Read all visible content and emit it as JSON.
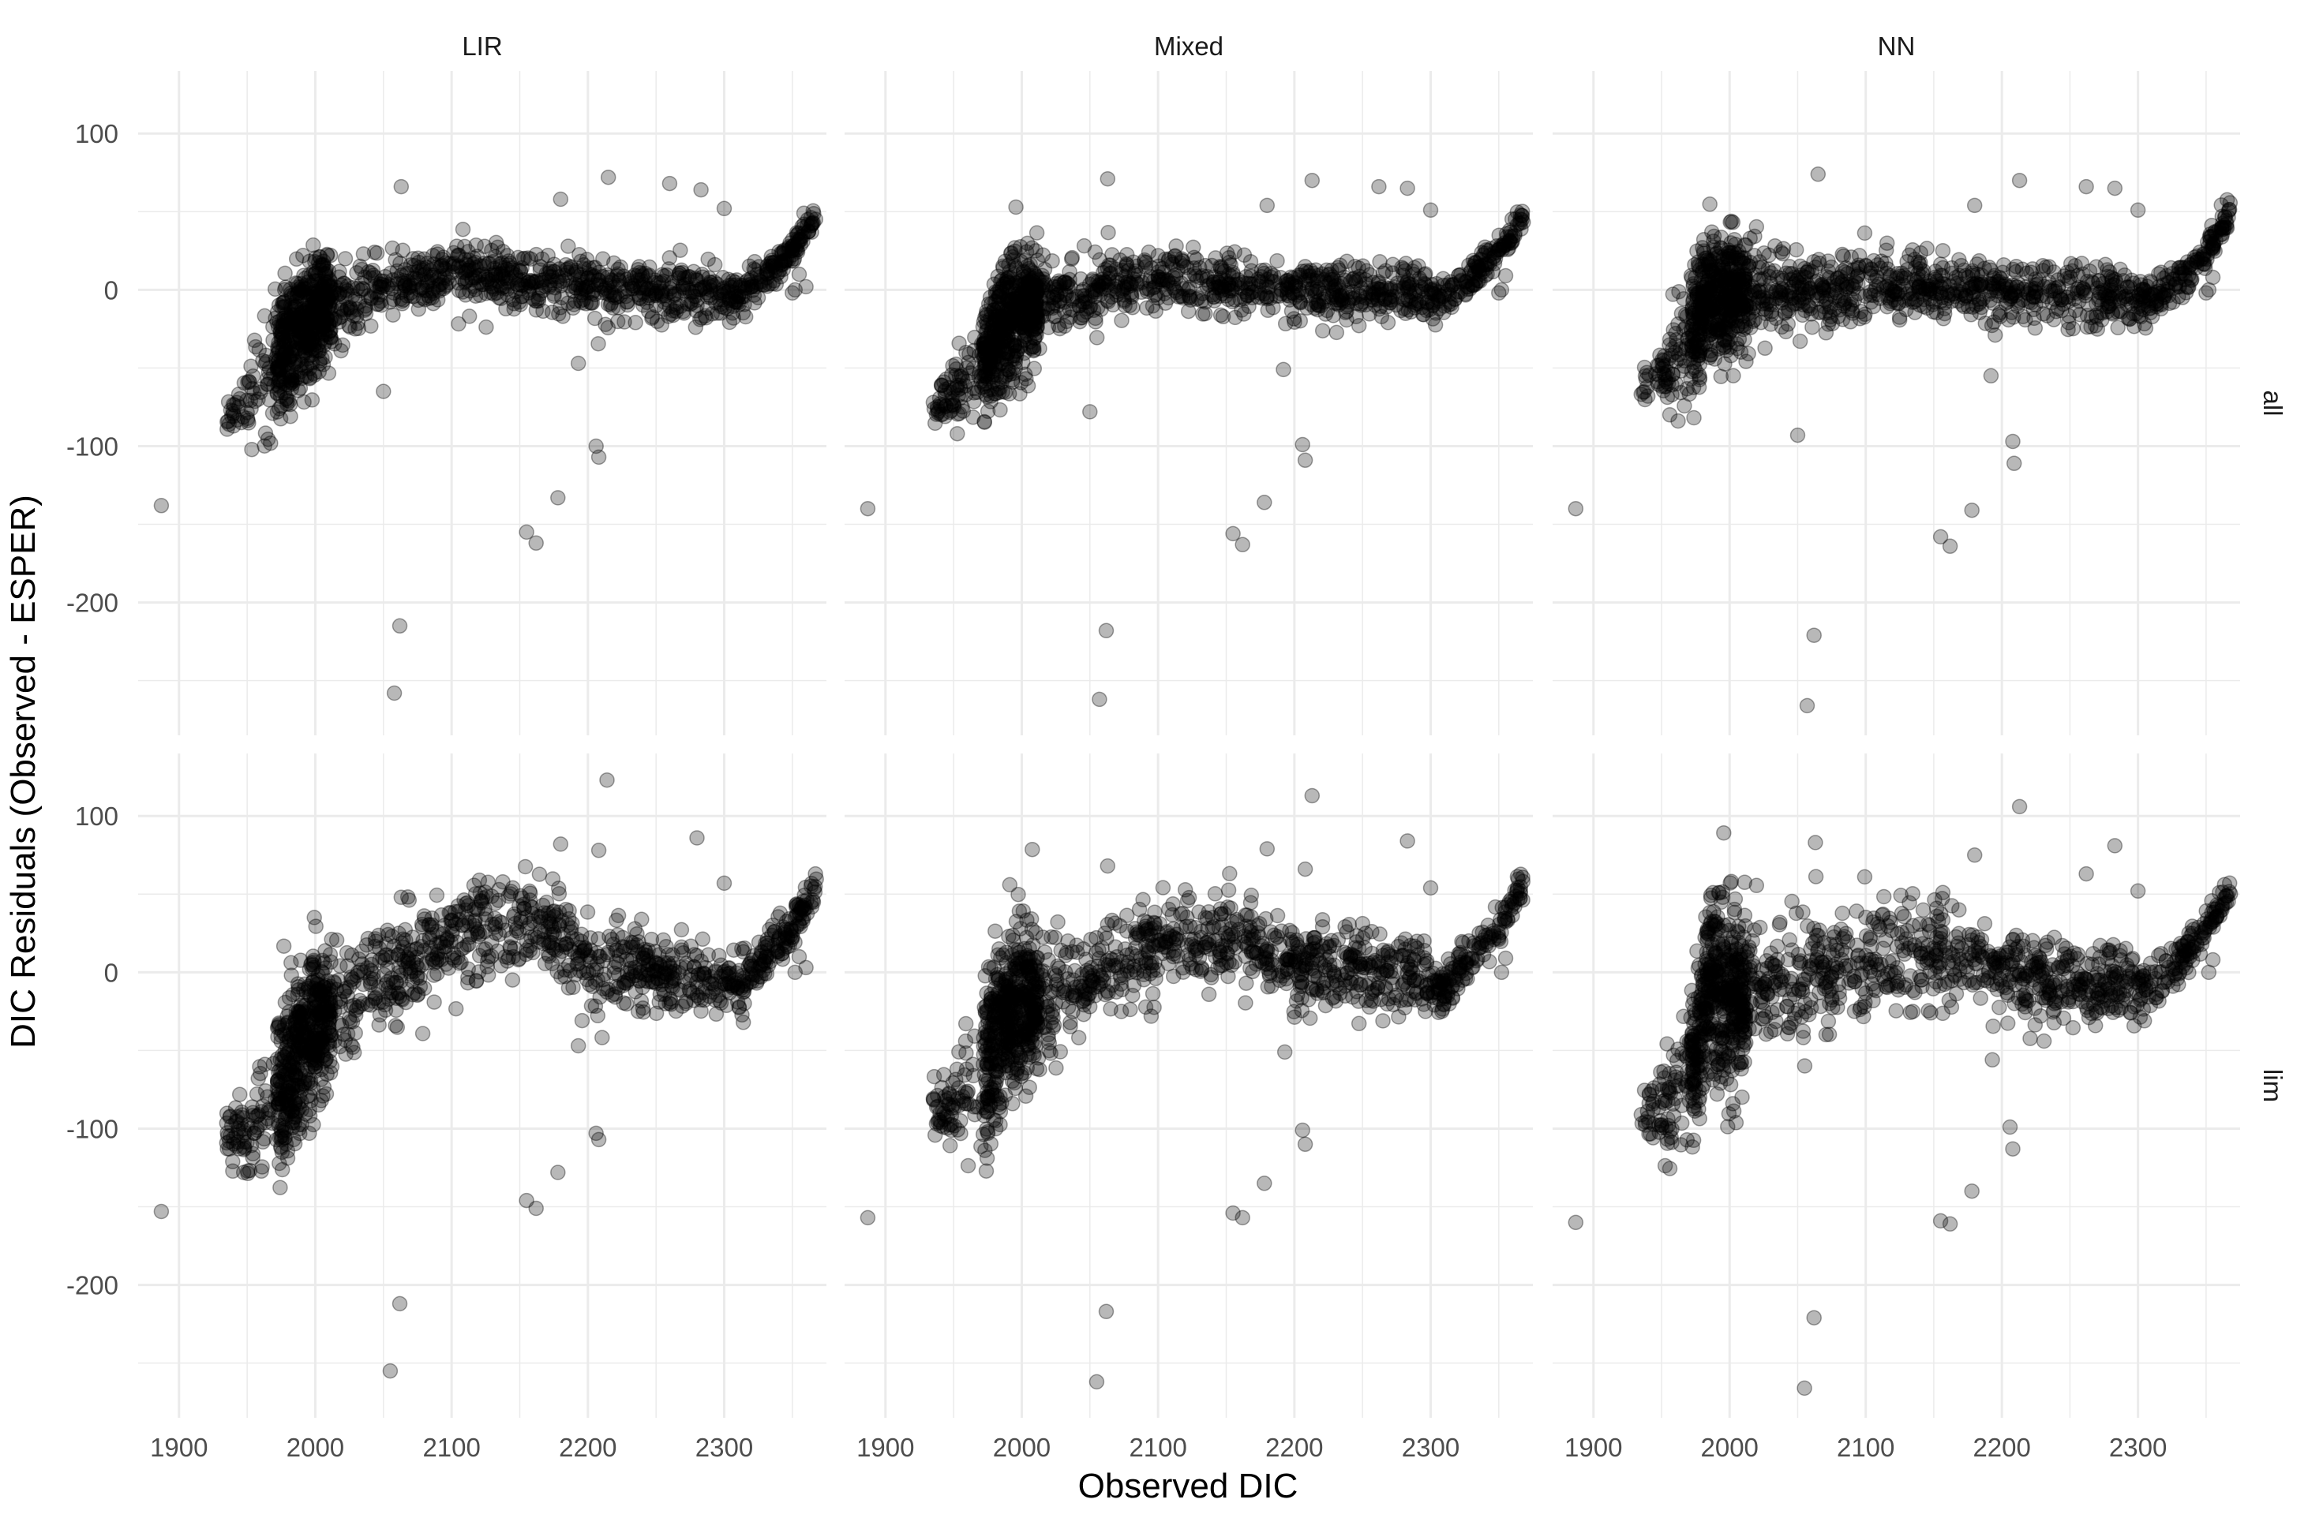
{
  "chart_data": {
    "type": "scatter",
    "xlabel": "Observed DIC",
    "ylabel": "DIC Residuals (Observed - ESPER)",
    "x_ticks": [
      1900,
      2000,
      2100,
      2200,
      2300
    ],
    "y_ticks": [
      100,
      0,
      -100,
      -200
    ],
    "xlim": [
      1870,
      2375
    ],
    "ylim": [
      -285,
      140
    ],
    "grid": true,
    "legend": "none",
    "colors": {
      "point": "#000000",
      "grid": "#ebebeb",
      "axis_text": "#4d4d4d"
    },
    "point_alpha": 0.28,
    "facet_columns": [
      "LIR",
      "Mixed",
      "NN"
    ],
    "facet_rows": [
      "all",
      "lim"
    ],
    "panels": [
      {
        "column": "LIR",
        "row": "all",
        "trend": [
          [
            1935,
            -80
          ],
          [
            1960,
            -62
          ],
          [
            1975,
            -42
          ],
          [
            1985,
            -28
          ],
          [
            2000,
            -14
          ],
          [
            2050,
            0
          ],
          [
            2100,
            8
          ],
          [
            2150,
            7
          ],
          [
            2200,
            2
          ],
          [
            2250,
            0
          ],
          [
            2290,
            -2
          ],
          [
            2310,
            -6
          ],
          [
            2330,
            8
          ],
          [
            2350,
            25
          ],
          [
            2368,
            50
          ]
        ],
        "spread": [
          [
            1935,
            6
          ],
          [
            1980,
            22
          ],
          [
            2000,
            18
          ],
          [
            2050,
            10
          ],
          [
            2150,
            9
          ],
          [
            2290,
            9
          ],
          [
            2340,
            5
          ],
          [
            2370,
            5
          ]
        ],
        "outliers": [
          [
            1887,
            -138
          ],
          [
            1936,
            -84
          ],
          [
            1938,
            -77
          ],
          [
            1955,
            -66
          ],
          [
            1958,
            -70
          ],
          [
            2050,
            -65
          ],
          [
            2058,
            -258
          ],
          [
            2062,
            -215
          ],
          [
            2063,
            66
          ],
          [
            2155,
            -155
          ],
          [
            2162,
            -162
          ],
          [
            2178,
            -133
          ],
          [
            2193,
            -47
          ],
          [
            2206,
            -100
          ],
          [
            2208,
            -107
          ],
          [
            2215,
            72
          ],
          [
            2180,
            58
          ],
          [
            2260,
            68
          ],
          [
            2283,
            64
          ],
          [
            2300,
            52
          ],
          [
            2350,
            -2
          ],
          [
            2352,
            0
          ],
          [
            2355,
            10
          ],
          [
            2360,
            2
          ]
        ]
      },
      {
        "column": "Mixed",
        "row": "all",
        "trend": [
          [
            1935,
            -75
          ],
          [
            1960,
            -58
          ],
          [
            1975,
            -40
          ],
          [
            1985,
            -25
          ],
          [
            2000,
            -10
          ],
          [
            2050,
            0
          ],
          [
            2100,
            5
          ],
          [
            2150,
            4
          ],
          [
            2200,
            1
          ],
          [
            2250,
            0
          ],
          [
            2290,
            -2
          ],
          [
            2310,
            -5
          ],
          [
            2330,
            8
          ],
          [
            2350,
            25
          ],
          [
            2368,
            48
          ]
        ],
        "spread": [
          [
            1935,
            6
          ],
          [
            1980,
            22
          ],
          [
            2000,
            18
          ],
          [
            2050,
            10
          ],
          [
            2150,
            9
          ],
          [
            2290,
            9
          ],
          [
            2340,
            5
          ],
          [
            2370,
            5
          ]
        ],
        "outliers": [
          [
            1887,
            -140
          ],
          [
            1940,
            -73
          ],
          [
            1955,
            -63
          ],
          [
            2050,
            -78
          ],
          [
            2057,
            -262
          ],
          [
            2062,
            -218
          ],
          [
            2063,
            71
          ],
          [
            2155,
            -156
          ],
          [
            2162,
            -163
          ],
          [
            2178,
            -136
          ],
          [
            2192,
            -51
          ],
          [
            2206,
            -99
          ],
          [
            2208,
            -109
          ],
          [
            2213,
            70
          ],
          [
            2180,
            54
          ],
          [
            2262,
            66
          ],
          [
            2283,
            65
          ],
          [
            2300,
            51
          ],
          [
            2350,
            -2
          ],
          [
            2352,
            0
          ],
          [
            2355,
            9
          ]
        ]
      },
      {
        "column": "NN",
        "row": "all",
        "trend": [
          [
            1935,
            -65
          ],
          [
            1960,
            -45
          ],
          [
            1975,
            -20
          ],
          [
            1985,
            -5
          ],
          [
            2000,
            -3
          ],
          [
            2050,
            -3
          ],
          [
            2100,
            0
          ],
          [
            2150,
            0
          ],
          [
            2200,
            -2
          ],
          [
            2250,
            -3
          ],
          [
            2290,
            -3
          ],
          [
            2310,
            -6
          ],
          [
            2330,
            6
          ],
          [
            2350,
            25
          ],
          [
            2368,
            50
          ]
        ],
        "spread": [
          [
            1935,
            6
          ],
          [
            1980,
            22
          ],
          [
            2000,
            18
          ],
          [
            2050,
            12
          ],
          [
            2150,
            10
          ],
          [
            2290,
            9
          ],
          [
            2340,
            5
          ],
          [
            2370,
            5
          ]
        ],
        "outliers": [
          [
            1887,
            -140
          ],
          [
            1940,
            -68
          ],
          [
            1955,
            -60
          ],
          [
            2050,
            -93
          ],
          [
            2057,
            -266
          ],
          [
            2062,
            -221
          ],
          [
            2065,
            74
          ],
          [
            2155,
            -158
          ],
          [
            2162,
            -164
          ],
          [
            2178,
            -141
          ],
          [
            2192,
            -55
          ],
          [
            2208,
            -97
          ],
          [
            2209,
            -111
          ],
          [
            2213,
            70
          ],
          [
            2180,
            54
          ],
          [
            2262,
            66
          ],
          [
            2283,
            65
          ],
          [
            2300,
            51
          ],
          [
            2350,
            -2
          ],
          [
            2352,
            0
          ],
          [
            2355,
            8
          ]
        ]
      },
      {
        "column": "LIR",
        "row": "lim",
        "trend": [
          [
            1935,
            -110
          ],
          [
            1960,
            -95
          ],
          [
            1975,
            -75
          ],
          [
            1985,
            -55
          ],
          [
            2000,
            -35
          ],
          [
            2050,
            0
          ],
          [
            2100,
            20
          ],
          [
            2150,
            32
          ],
          [
            2175,
            25
          ],
          [
            2200,
            5
          ],
          [
            2250,
            0
          ],
          [
            2290,
            -8
          ],
          [
            2310,
            -10
          ],
          [
            2330,
            10
          ],
          [
            2350,
            30
          ],
          [
            2368,
            58
          ]
        ],
        "spread": [
          [
            1935,
            8
          ],
          [
            1980,
            28
          ],
          [
            2000,
            25
          ],
          [
            2050,
            15
          ],
          [
            2150,
            15
          ],
          [
            2200,
            14
          ],
          [
            2290,
            12
          ],
          [
            2340,
            6
          ],
          [
            2370,
            5
          ]
        ],
        "outliers": [
          [
            1887,
            -153
          ],
          [
            1937,
            -113
          ],
          [
            1940,
            -106
          ],
          [
            1955,
            -103
          ],
          [
            2055,
            -255
          ],
          [
            2062,
            -212
          ],
          [
            2063,
            48
          ],
          [
            2155,
            -146
          ],
          [
            2162,
            -151
          ],
          [
            2178,
            -128
          ],
          [
            2193,
            -47
          ],
          [
            2206,
            -103
          ],
          [
            2208,
            -107
          ],
          [
            2214,
            123
          ],
          [
            2180,
            82
          ],
          [
            2208,
            78
          ],
          [
            2280,
            86
          ],
          [
            2300,
            57
          ],
          [
            2352,
            0
          ],
          [
            2355,
            10
          ],
          [
            2360,
            3
          ]
        ]
      },
      {
        "column": "Mixed",
        "row": "lim",
        "trend": [
          [
            1935,
            -90
          ],
          [
            1960,
            -75
          ],
          [
            1975,
            -55
          ],
          [
            1985,
            -30
          ],
          [
            2000,
            -25
          ],
          [
            2050,
            -5
          ],
          [
            2100,
            15
          ],
          [
            2150,
            25
          ],
          [
            2175,
            18
          ],
          [
            2200,
            5
          ],
          [
            2250,
            0
          ],
          [
            2290,
            -5
          ],
          [
            2310,
            -8
          ],
          [
            2330,
            10
          ],
          [
            2350,
            30
          ],
          [
            2368,
            55
          ]
        ],
        "spread": [
          [
            1935,
            8
          ],
          [
            1980,
            28
          ],
          [
            2000,
            25
          ],
          [
            2050,
            15
          ],
          [
            2150,
            15
          ],
          [
            2200,
            14
          ],
          [
            2290,
            12
          ],
          [
            2340,
            6
          ],
          [
            2370,
            5
          ]
        ],
        "outliers": [
          [
            1887,
            -157
          ],
          [
            1940,
            -90
          ],
          [
            1955,
            -95
          ],
          [
            2055,
            -262
          ],
          [
            2062,
            -217
          ],
          [
            2063,
            68
          ],
          [
            2155,
            -154
          ],
          [
            2162,
            -157
          ],
          [
            2178,
            -135
          ],
          [
            2193,
            -51
          ],
          [
            2206,
            -101
          ],
          [
            2208,
            -110
          ],
          [
            2213,
            113
          ],
          [
            2180,
            79
          ],
          [
            2208,
            66
          ],
          [
            2283,
            84
          ],
          [
            2300,
            54
          ],
          [
            2352,
            0
          ],
          [
            2355,
            9
          ]
        ]
      },
      {
        "column": "NN",
        "row": "lim",
        "trend": [
          [
            1935,
            -95
          ],
          [
            1960,
            -80
          ],
          [
            1975,
            -50
          ],
          [
            1985,
            -5
          ],
          [
            2000,
            -15
          ],
          [
            2050,
            -5
          ],
          [
            2100,
            5
          ],
          [
            2150,
            12
          ],
          [
            2175,
            8
          ],
          [
            2200,
            0
          ],
          [
            2250,
            -5
          ],
          [
            2290,
            -8
          ],
          [
            2310,
            -10
          ],
          [
            2330,
            5
          ],
          [
            2350,
            28
          ],
          [
            2368,
            55
          ]
        ],
        "spread": [
          [
            1935,
            8
          ],
          [
            1980,
            30
          ],
          [
            2000,
            28
          ],
          [
            2050,
            18
          ],
          [
            2150,
            16
          ],
          [
            2200,
            14
          ],
          [
            2290,
            12
          ],
          [
            2340,
            6
          ],
          [
            2370,
            5
          ]
        ],
        "outliers": [
          [
            1887,
            -160
          ],
          [
            1940,
            -93
          ],
          [
            1955,
            -98
          ],
          [
            2055,
            -266
          ],
          [
            2062,
            -221
          ],
          [
            2063,
            83
          ],
          [
            2155,
            -159
          ],
          [
            2162,
            -161
          ],
          [
            2178,
            -140
          ],
          [
            2193,
            -56
          ],
          [
            2206,
            -99
          ],
          [
            2208,
            -113
          ],
          [
            2213,
            106
          ],
          [
            2180,
            75
          ],
          [
            2262,
            63
          ],
          [
            2283,
            81
          ],
          [
            2300,
            52
          ],
          [
            2352,
            0
          ],
          [
            2355,
            8
          ]
        ]
      }
    ]
  }
}
